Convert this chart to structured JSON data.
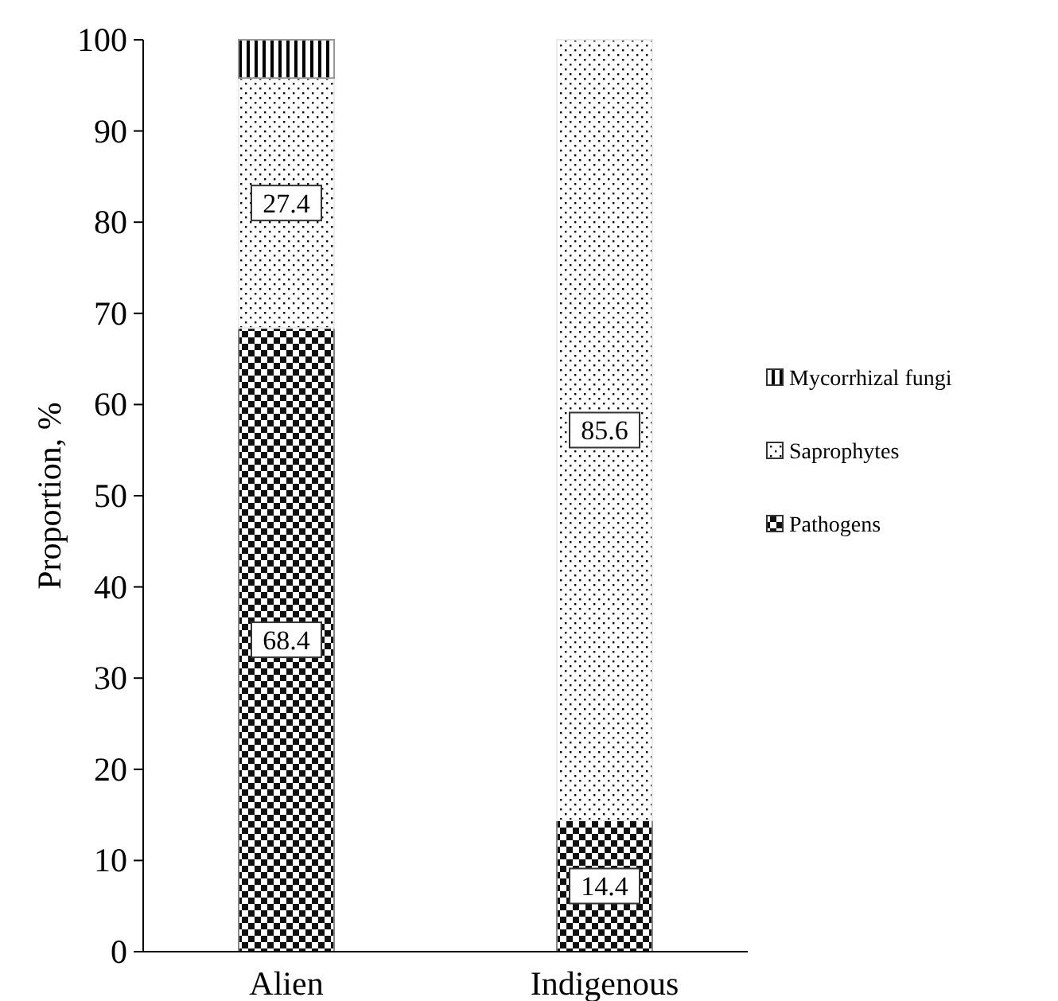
{
  "chart_data": {
    "type": "bar",
    "stacked": true,
    "categories": [
      "Alien",
      "Indigenous"
    ],
    "ylabel": "Proportion, %",
    "ylim": [
      0,
      100
    ],
    "yticks": [
      0,
      10,
      20,
      30,
      40,
      50,
      60,
      70,
      80,
      90,
      100
    ],
    "legend": "right",
    "grid": false,
    "series": [
      {
        "name": "Pathogens",
        "color": "#888888",
        "values": [
          68.4,
          14.4
        ],
        "value_labels": [
          "68.4",
          "14.4"
        ]
      },
      {
        "name": "Saprophytes",
        "color": "#ebebeb",
        "values": [
          27.4,
          85.6
        ],
        "value_labels": [
          "27.4",
          "85.6"
        ]
      },
      {
        "name": "Mycorrhizal fungi",
        "color": "#999999",
        "values": [
          4.2,
          0
        ],
        "value_labels": [
          null,
          null
        ]
      }
    ]
  }
}
